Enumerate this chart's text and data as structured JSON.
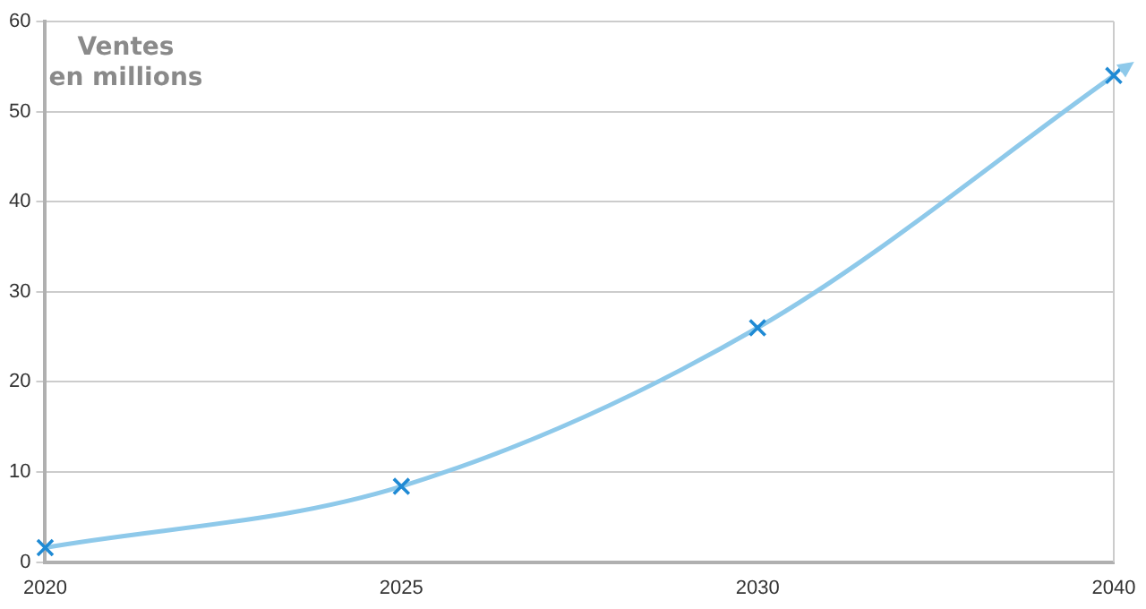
{
  "chart_data": {
    "type": "line",
    "categories": [
      "2020",
      "2025",
      "2030",
      "2040"
    ],
    "series": [
      {
        "color": "#8ec9ea",
        "values": [
          1.6,
          8.4,
          26,
          54
        ]
      }
    ],
    "ylim": [
      0,
      60
    ],
    "yticks": [
      0,
      10,
      20,
      30,
      40,
      50,
      60
    ],
    "grid": "y",
    "legend": false,
    "marker": "cross",
    "line_style": "solid",
    "annotations": [
      "Ventes\nen millions"
    ]
  }
}
